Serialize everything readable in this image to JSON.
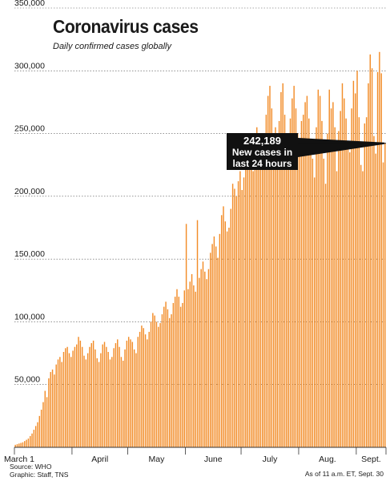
{
  "title": "Coronavirus cases",
  "subtitle": "Daily confirmed cases globally",
  "source_line1": "Source: WHO",
  "source_line2": "Graphic: Staff, TNS",
  "as_of": "As of 11 a.m. ET, Sept. 30",
  "callout": {
    "value": "242,189",
    "line1": "New cases in",
    "line2": "last 24 hours"
  },
  "colors": {
    "bar": "#f28c28",
    "grid": "#555555",
    "axis": "#333333"
  },
  "chart_data": {
    "type": "bar",
    "title": "Coronavirus cases",
    "subtitle": "Daily confirmed cases globally",
    "xlabel": "",
    "ylabel": "",
    "ylim": [
      0,
      350000
    ],
    "yticks": [
      50000,
      100000,
      150000,
      200000,
      250000,
      300000,
      350000
    ],
    "ytick_labels": [
      "50,000",
      "100,000",
      "150,000",
      "200,000",
      "250,000",
      "300,000",
      "350,000"
    ],
    "x_labels": [
      {
        "label": "March 1",
        "day": 0
      },
      {
        "label": "April",
        "day": 31
      },
      {
        "label": "May",
        "day": 61
      },
      {
        "label": "June",
        "day": 92
      },
      {
        "label": "July",
        "day": 122
      },
      {
        "label": "Aug.",
        "day": 153
      },
      {
        "label": "Sept.",
        "day": 184
      }
    ],
    "grid": "horizontal dashed",
    "annotation": {
      "text": "242,189 New cases in last 24 hours",
      "value": 242189
    },
    "values": [
      2000,
      2500,
      3000,
      3500,
      4000,
      5000,
      6000,
      7000,
      9000,
      11000,
      14000,
      17000,
      20000,
      25000,
      30000,
      36000,
      45000,
      40000,
      55000,
      60000,
      62000,
      58000,
      66000,
      70000,
      72000,
      68000,
      76000,
      79000,
      80000,
      75000,
      72000,
      77000,
      80000,
      82000,
      88000,
      85000,
      80000,
      73000,
      70000,
      75000,
      80000,
      83000,
      85000,
      78000,
      71000,
      68000,
      75000,
      82000,
      84000,
      80000,
      76000,
      70000,
      72000,
      79000,
      83000,
      86000,
      80000,
      72000,
      69000,
      78000,
      85000,
      88000,
      86000,
      84000,
      78000,
      75000,
      88000,
      92000,
      97000,
      95000,
      90000,
      86000,
      92000,
      100000,
      107000,
      105000,
      100000,
      96000,
      99000,
      106000,
      112000,
      116000,
      110000,
      103000,
      106000,
      115000,
      120000,
      126000,
      120000,
      112000,
      115000,
      125000,
      178000,
      126000,
      132000,
      138000,
      129000,
      124000,
      181000,
      135000,
      142000,
      148000,
      140000,
      134000,
      142000,
      155000,
      162000,
      168000,
      160000,
      151000,
      170000,
      185000,
      192000,
      180000,
      172000,
      175000,
      190000,
      210000,
      206000,
      200000,
      212000,
      220000,
      205000,
      215000,
      230000,
      232000,
      235000,
      228000,
      220000,
      248000,
      255000,
      245000,
      225000,
      238000,
      250000,
      265000,
      280000,
      288000,
      270000,
      240000,
      255000,
      245000,
      260000,
      283000,
      290000,
      265000,
      248000,
      230000,
      262000,
      278000,
      288000,
      270000,
      250000,
      240000,
      260000,
      265000,
      275000,
      280000,
      262000,
      240000,
      230000,
      215000,
      255000,
      285000,
      280000,
      260000,
      230000,
      210000,
      250000,
      285000,
      270000,
      275000,
      255000,
      220000,
      252000,
      268000,
      290000,
      278000,
      262000,
      240000,
      235000,
      270000,
      292000,
      282000,
      300000,
      263000,
      225000,
      220000,
      258000,
      263000,
      290000,
      313000,
      302000,
      248000,
      234000,
      299000,
      315000,
      298000,
      227000,
      242189
    ]
  }
}
